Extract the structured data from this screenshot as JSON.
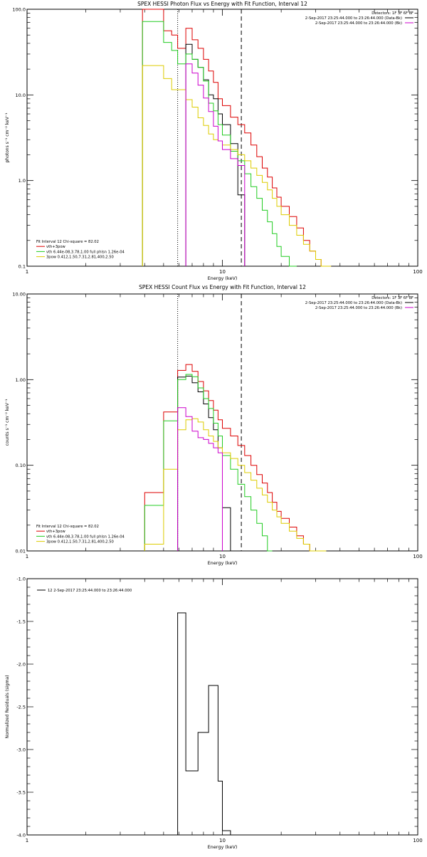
{
  "chart_data": [
    {
      "type": "line",
      "title": "SPEX HESSI Photon Flux vs Energy with Fit Function, Interval 12",
      "xlabel": "Energy (keV)",
      "ylabel": "photons s⁻¹ cm⁻² keV⁻¹",
      "xscale": "log",
      "yscale": "log",
      "xlim": [
        1,
        100
      ],
      "ylim": [
        0.1,
        100
      ],
      "x_ticks": [
        {
          "v": 1,
          "label": "1"
        },
        {
          "v": 10,
          "label": "10"
        },
        {
          "v": 100,
          "label": "100"
        }
      ],
      "y_ticks": [
        {
          "v": 0.1,
          "label": "0.1"
        },
        {
          "v": 1,
          "label": "1.0"
        },
        {
          "v": 10,
          "label": "10.0"
        },
        {
          "v": 100,
          "label": "100.0"
        }
      ],
      "header_lines": [
        {
          "text": "Detectors: 1F 3F 6F 8F",
          "swatch": ""
        },
        {
          "text": "2-Sep-2017 23:25:44.000 to 23:26:44.000 (Data-Bk)",
          "swatch": "#000000"
        },
        {
          "text": "2-Sep-2017 23:25:44.000 to 23:26:44.000 (Bk)",
          "swatch": "#cc00cc"
        }
      ],
      "fit_legend": [
        {
          "text": "Fit Interval 12   Chi-square = 82.02",
          "swatch": ""
        },
        {
          "text": "vth+3pow",
          "swatch": "#dd0000"
        },
        {
          "text": "vth 6.44e-08,3.78,1.00  full phlsn 1.26e-04",
          "swatch": "#22cc22"
        },
        {
          "text": "3pow 0.412,1.50,7.31,2.81,400,2.50",
          "swatch": "#ddcc00"
        }
      ],
      "vlines": [
        {
          "x": 5.9,
          "style": "dotted"
        },
        {
          "x": 12.5,
          "style": "dashed"
        }
      ],
      "edges": [
        3.9,
        4.0,
        5.0,
        5.5,
        5.9,
        6.5,
        7.0,
        7.5,
        8.0,
        8.5,
        9.0,
        9.5,
        10.0,
        11.0,
        12.0,
        13.0,
        14.0,
        15.0,
        16.0,
        17.0,
        18.0,
        19.0,
        20.0,
        22.0,
        24.0,
        26.0,
        28.0,
        30.0,
        32.0,
        34.0,
        36.0
      ],
      "series": [
        {
          "color": "#dd0000",
          "values": [
            100,
            100,
            56,
            50,
            35,
            60,
            44,
            35,
            26,
            19,
            14,
            9,
            7.5,
            5.5,
            4.5,
            3.6,
            2.6,
            1.9,
            1.4,
            1.1,
            0.82,
            0.64,
            0.5,
            0.38,
            0.28,
            0.2,
            0.15,
            0.12,
            0.1,
            0.1
          ]
        },
        {
          "color": "#000000",
          "values": [
            null,
            null,
            null,
            null,
            null,
            39,
            26,
            21,
            15,
            10,
            9,
            6,
            4.5,
            2.7,
            0.68,
            null,
            null,
            null,
            null,
            null,
            null,
            null,
            null,
            null,
            null,
            null,
            null,
            null,
            null,
            null
          ]
        },
        {
          "color": "#22cc22",
          "values": [
            72,
            72,
            41,
            33,
            23,
            30,
            26,
            21,
            14.5,
            8,
            6.5,
            4.5,
            3.4,
            2.2,
            1.7,
            1.2,
            0.85,
            0.62,
            0.45,
            0.33,
            0.24,
            0.17,
            0.13,
            0.1,
            null,
            null,
            null,
            null,
            null,
            null
          ]
        },
        {
          "color": "#ddcc00",
          "values": [
            22,
            22,
            15.5,
            11.5,
            11.5,
            8.8,
            7.2,
            5.4,
            4.4,
            3.5,
            3,
            2.9,
            2.6,
            2.3,
            2.0,
            1.7,
            1.4,
            1.15,
            0.95,
            0.78,
            0.62,
            0.5,
            0.4,
            0.3,
            0.23,
            0.18,
            0.15,
            0.12,
            0.1,
            0.1
          ]
        },
        {
          "color": "#cc00cc",
          "values": [
            null,
            null,
            null,
            null,
            null,
            23,
            18,
            13,
            9.2,
            6.4,
            4.3,
            2.9,
            2.3,
            1.8,
            1.5,
            null,
            null,
            null,
            null,
            null,
            null,
            null,
            null,
            null,
            null,
            null,
            null,
            null,
            null,
            null
          ]
        }
      ]
    },
    {
      "type": "line",
      "title": "SPEX HESSI Count Flux vs Energy with Fit Function, Interval 12",
      "xlabel": "Energy (keV)",
      "ylabel": "counts s⁻¹ cm⁻² keV⁻¹",
      "xscale": "log",
      "yscale": "log",
      "xlim": [
        1,
        100
      ],
      "ylim": [
        0.01,
        10
      ],
      "x_ticks": [
        {
          "v": 1,
          "label": "1"
        },
        {
          "v": 10,
          "label": "10"
        },
        {
          "v": 100,
          "label": "100"
        }
      ],
      "y_ticks": [
        {
          "v": 0.01,
          "label": "0.01"
        },
        {
          "v": 0.1,
          "label": "0.10"
        },
        {
          "v": 1,
          "label": "1.00"
        },
        {
          "v": 10,
          "label": "10.00"
        }
      ],
      "header_lines": [
        {
          "text": "Detectors: 1F 3F 6F 8F",
          "swatch": ""
        },
        {
          "text": "2-Sep-2017 23:25:44.000 to 23:26:44.000 (Data-Bk)",
          "swatch": "#000000"
        },
        {
          "text": "2-Sep-2017 23:25:44.000 to 23:26:44.000 (Bk)",
          "swatch": "#cc00cc"
        }
      ],
      "fit_legend": [
        {
          "text": "Fit Interval 12   Chi-square = 82.02",
          "swatch": ""
        },
        {
          "text": "vth+3pow",
          "swatch": "#dd0000"
        },
        {
          "text": "vth 6.44e-08,3.78,1.00  full phlsn 1.26e-04",
          "swatch": "#22cc22"
        },
        {
          "text": "3pow 0.412,1.50,7.31,2.81,400,2.50",
          "swatch": "#ddcc00"
        }
      ],
      "vlines": [
        {
          "x": 5.9,
          "style": "dotted"
        },
        {
          "x": 12.5,
          "style": "dashed"
        }
      ],
      "edges": [
        4.0,
        5.0,
        5.9,
        6.5,
        7.0,
        7.5,
        8.0,
        8.5,
        9.0,
        9.5,
        10.0,
        11.0,
        12.0,
        13.0,
        14.0,
        15.0,
        16.0,
        17.0,
        18.0,
        19.0,
        20.0,
        22.0,
        24.0,
        26.0,
        28.0,
        30.0,
        32.0,
        34.0,
        36.0,
        38.0
      ],
      "series": [
        {
          "color": "#dd0000",
          "values": [
            0.048,
            0.42,
            1.28,
            1.5,
            1.25,
            0.95,
            0.74,
            0.57,
            0.44,
            0.34,
            0.27,
            0.22,
            0.17,
            0.13,
            0.1,
            0.078,
            0.062,
            0.048,
            0.037,
            0.029,
            0.024,
            0.019,
            0.015,
            0.012,
            0.01,
            0.01,
            null,
            null,
            null
          ]
        },
        {
          "color": "#000000",
          "values": [
            null,
            null,
            1.07,
            1.1,
            0.92,
            0.72,
            0.52,
            0.36,
            0.26,
            0.16,
            0.032,
            null,
            null,
            null,
            null,
            null,
            null,
            null,
            null,
            null,
            null,
            null,
            null,
            null,
            null,
            null,
            null,
            null,
            null
          ]
        },
        {
          "color": "#22cc22",
          "values": [
            0.034,
            0.33,
            1.0,
            1.15,
            1.08,
            0.8,
            0.6,
            0.46,
            0.31,
            0.22,
            0.13,
            0.09,
            0.06,
            0.043,
            0.03,
            0.021,
            0.015,
            0.01,
            null,
            null,
            null,
            null,
            null,
            null,
            null,
            null,
            null,
            null,
            null
          ]
        },
        {
          "color": "#ddcc00",
          "values": [
            0.012,
            0.09,
            0.26,
            0.34,
            0.35,
            0.32,
            0.26,
            0.22,
            0.19,
            0.16,
            0.14,
            0.12,
            0.1,
            0.082,
            0.067,
            0.054,
            0.045,
            0.037,
            0.03,
            0.025,
            0.021,
            0.017,
            0.014,
            0.012,
            0.01,
            0.01,
            0.01,
            null,
            null
          ]
        },
        {
          "color": "#cc00cc",
          "values": [
            null,
            null,
            0.47,
            0.37,
            0.25,
            0.21,
            0.2,
            0.18,
            0.16,
            0.14,
            null,
            null,
            null,
            null,
            null,
            null,
            null,
            null,
            null,
            null,
            null,
            null,
            null,
            null,
            null,
            null,
            null,
            null,
            null
          ]
        }
      ]
    },
    {
      "type": "line",
      "title": "",
      "xlabel": "Energy (keV)",
      "ylabel": "Normalized Residuals (sigma)",
      "xscale": "log",
      "yscale": "linear",
      "xlim": [
        1,
        100
      ],
      "ylim": [
        -4.0,
        -1.0
      ],
      "x_ticks": [
        {
          "v": 1,
          "label": "1"
        },
        {
          "v": 10,
          "label": "10"
        },
        {
          "v": 100,
          "label": "100"
        }
      ],
      "y_ticks": [
        {
          "v": -4.0,
          "label": "-4.0"
        },
        {
          "v": -3.5,
          "label": "-3.5"
        },
        {
          "v": -3.0,
          "label": "-3.0"
        },
        {
          "v": -2.5,
          "label": "-2.5"
        },
        {
          "v": -2.0,
          "label": "-2.0"
        },
        {
          "v": -1.5,
          "label": "-1.5"
        },
        {
          "v": -1.0,
          "label": "-1.0"
        }
      ],
      "legend": [
        {
          "text": "12  2-Sep-2017 23:25:44.000 to 23:26:44.000",
          "swatch": "#000000"
        }
      ],
      "edges": [
        5.9,
        6.5,
        7.5,
        8.5,
        9.5,
        10.0,
        11.0
      ],
      "series": [
        {
          "color": "#000000",
          "values": [
            -1.4,
            -3.25,
            -2.8,
            -2.25,
            -3.37,
            -3.95
          ]
        }
      ]
    }
  ]
}
